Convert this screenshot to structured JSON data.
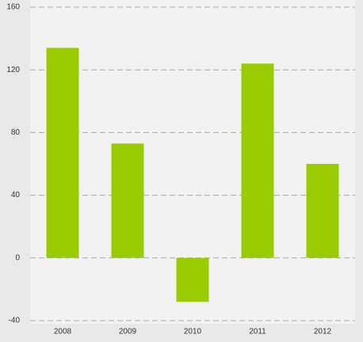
{
  "chart_data": {
    "type": "bar",
    "categories": [
      "2008",
      "2009",
      "2010",
      "2011",
      "2012"
    ],
    "values": [
      134,
      73,
      -28,
      124,
      60
    ],
    "color": "#99cc00",
    "ylim": [
      -40,
      160
    ],
    "yticks": [
      -40,
      0,
      40,
      80,
      120,
      160
    ],
    "grid": true
  }
}
